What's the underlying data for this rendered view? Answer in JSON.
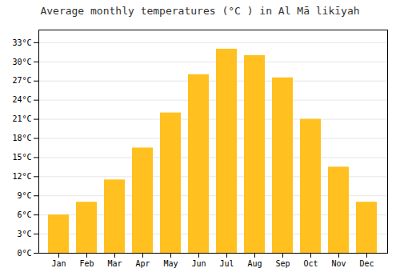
{
  "chart_data": {
    "type": "bar",
    "title": "Average monthly temperatures (°C ) in Al Mā likīyah",
    "categories": [
      "Jan",
      "Feb",
      "Mar",
      "Apr",
      "May",
      "Jun",
      "Jul",
      "Aug",
      "Sep",
      "Oct",
      "Nov",
      "Dec"
    ],
    "values": [
      6.0,
      8.0,
      11.5,
      16.5,
      22.0,
      28.0,
      32.0,
      31.0,
      27.5,
      21.0,
      13.5,
      8.0
    ],
    "color": "#FFC020",
    "ylim": [
      0,
      35
    ],
    "yticks": [
      {
        "value": 0,
        "label": "0°C"
      },
      {
        "value": 3,
        "label": "3°C"
      },
      {
        "value": 6,
        "label": "6°C"
      },
      {
        "value": 9,
        "label": "9°C"
      },
      {
        "value": 12,
        "label": "12°C"
      },
      {
        "value": 15,
        "label": "15°C"
      },
      {
        "value": 18,
        "label": "18°C"
      },
      {
        "value": 21,
        "label": "21°C"
      },
      {
        "value": 24,
        "label": "24°C"
      },
      {
        "value": 27,
        "label": "27°C"
      },
      {
        "value": 30,
        "label": "30°C"
      },
      {
        "value": 33,
        "label": "33°C"
      }
    ],
    "grid": true
  }
}
